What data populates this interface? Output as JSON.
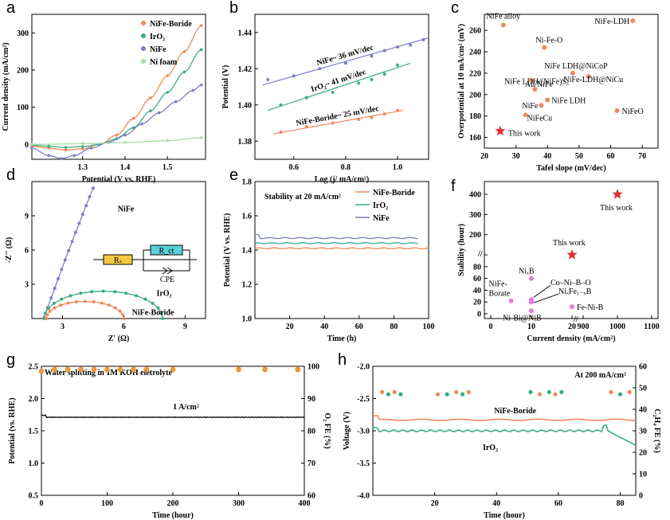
{
  "chart_data": [
    {
      "panel": "a",
      "type": "line",
      "xlabel": "Potential (V vs. RHE)",
      "ylabel": "Current density (mA/cm²)",
      "xlim": [
        1.18,
        1.59
      ],
      "ylim": [
        -40,
        350
      ],
      "xticks": [
        1.3,
        1.4,
        1.5
      ],
      "yticks": [
        0,
        100,
        200,
        300
      ],
      "legend_position": "top-right",
      "series": [
        {
          "name": "NiFe-Boride",
          "color": "#ee8a5a",
          "x": [
            1.18,
            1.22,
            1.26,
            1.3,
            1.34,
            1.38,
            1.42,
            1.46,
            1.5,
            1.54,
            1.58
          ],
          "y": [
            -5,
            -10,
            -15,
            -12,
            0,
            25,
            70,
            125,
            185,
            250,
            320
          ]
        },
        {
          "name": "IrO₂",
          "color": "#3aae7e",
          "x": [
            1.18,
            1.22,
            1.26,
            1.3,
            1.34,
            1.38,
            1.42,
            1.46,
            1.5,
            1.54,
            1.58
          ],
          "y": [
            -2,
            -5,
            -8,
            -6,
            0,
            15,
            45,
            90,
            140,
            195,
            255
          ]
        },
        {
          "name": "NiFe",
          "color": "#7b7fc4",
          "x": [
            1.18,
            1.22,
            1.25,
            1.28,
            1.32,
            1.36,
            1.4,
            1.44,
            1.48,
            1.52,
            1.56,
            1.58
          ],
          "y": [
            -10,
            -30,
            -38,
            -30,
            -10,
            5,
            25,
            55,
            85,
            115,
            145,
            160
          ]
        },
        {
          "name": "Ni foam",
          "color": "#a6dca6",
          "x": [
            1.18,
            1.3,
            1.4,
            1.5,
            1.58
          ],
          "y": [
            0,
            2,
            5,
            10,
            18
          ]
        }
      ]
    },
    {
      "panel": "b",
      "type": "scatter",
      "xlabel": "Log (j/ mA/cm²)",
      "ylabel": "Potential (V)",
      "xlim": [
        0.45,
        1.12
      ],
      "ylim": [
        1.37,
        1.45
      ],
      "xticks": [
        0.6,
        0.8,
        1.0
      ],
      "yticks": [
        1.38,
        1.4,
        1.42,
        1.44
      ],
      "series": [
        {
          "name": "NiFe~ 36 mV/dec",
          "color": "#7b7fc4",
          "fit_x": [
            0.48,
            1.12
          ],
          "fit_y": [
            1.411,
            1.437
          ],
          "x": [
            0.5,
            0.6,
            0.7,
            0.8,
            0.9,
            0.95,
            1.0,
            1.05,
            1.1
          ],
          "y": [
            1.414,
            1.416,
            1.42,
            1.423,
            1.427,
            1.43,
            1.432,
            1.433,
            1.436
          ]
        },
        {
          "name": "IrO₂~ 41 mV/dec",
          "color": "#3aae7e",
          "fit_x": [
            0.5,
            1.05
          ],
          "fit_y": [
            1.397,
            1.423
          ],
          "x": [
            0.55,
            0.65,
            0.75,
            0.85,
            0.9,
            0.95,
            1.0
          ],
          "y": [
            1.4,
            1.404,
            1.407,
            1.412,
            1.414,
            1.417,
            1.422
          ]
        },
        {
          "name": "NiFe-Boride~ 25 mV/dec",
          "color": "#ee8a5a",
          "fit_x": [
            0.52,
            1.02
          ],
          "fit_y": [
            1.384,
            1.397
          ],
          "x": [
            0.55,
            0.65,
            0.75,
            0.85,
            0.9,
            0.95,
            1.0
          ],
          "y": [
            1.385,
            1.388,
            1.39,
            1.392,
            1.393,
            1.395,
            1.397
          ]
        }
      ]
    },
    {
      "panel": "c",
      "type": "scatter",
      "xlabel": "Tafel slope (mV/dec)",
      "ylabel": "Overpotential at 10 mA/cm² (mV)",
      "xlim": [
        20,
        75
      ],
      "ylim": [
        150,
        275
      ],
      "xticks": [
        20,
        30,
        40,
        50,
        60,
        70
      ],
      "yticks": [
        160,
        180,
        200,
        220,
        240,
        260
      ],
      "points": [
        {
          "label": "NiFe alloy",
          "x": 26,
          "y": 265
        },
        {
          "label": "NiFe-LDH",
          "x": 67,
          "y": 269
        },
        {
          "label": "Ni-Fe-O",
          "x": 39,
          "y": 244
        },
        {
          "label": "NiFe LDH@NiCoP",
          "x": 48,
          "y": 220
        },
        {
          "label": "NiFe LDH/(NiFe)Sₓ",
          "x": 35,
          "y": 213
        },
        {
          "label": "NiFe-LDH@NiCu",
          "x": 53,
          "y": 217
        },
        {
          "label": "Au/NiFe",
          "x": 36,
          "y": 205
        },
        {
          "label": "NiFe",
          "x": 38,
          "y": 190
        },
        {
          "label": "NiFe LDH",
          "x": 40,
          "y": 195
        },
        {
          "label": "NiFeCu",
          "x": 33,
          "y": 181
        },
        {
          "label": "NiFeO",
          "x": 62,
          "y": 185
        }
      ],
      "highlight": {
        "label": "This work",
        "x": 25,
        "y": 166,
        "color": "#e23030"
      }
    },
    {
      "panel": "d",
      "type": "scatter",
      "xlabel": "Z' (Ω)",
      "ylabel": "-Z'' (Ω)",
      "xlim": [
        1.5,
        10
      ],
      "ylim": [
        0,
        12
      ],
      "xticks": [
        3,
        6,
        9
      ],
      "yticks": [
        3,
        6,
        9
      ],
      "series": [
        {
          "name": "NiFe",
          "color": "#7b7fc4"
        },
        {
          "name": "IrO₂",
          "color": "#3aae7e"
        },
        {
          "name": "NiFe-Boride",
          "color": "#ee8a5a"
        }
      ],
      "inset": {
        "labels": [
          "Rₛ",
          "R_ct",
          "CPE"
        ]
      }
    },
    {
      "panel": "e",
      "type": "line",
      "title": "Stability at 20 mA/cm²",
      "xlabel": "Time (h)",
      "ylabel": "Potential (V vs. RHE)",
      "xlim": [
        0,
        100
      ],
      "ylim": [
        1.0,
        1.8
      ],
      "xticks": [
        20,
        40,
        60,
        80,
        100
      ],
      "yticks": [
        1.0,
        1.2,
        1.4,
        1.6,
        1.8
      ],
      "series": [
        {
          "name": "NiFe-Boride",
          "color": "#ee8a5a",
          "value": 1.41
        },
        {
          "name": "IrO₂",
          "color": "#3aae7e",
          "value": 1.44
        },
        {
          "name": "NiFe",
          "color": "#7b7fc4",
          "value": 1.47
        }
      ]
    },
    {
      "panel": "f",
      "type": "scatter",
      "xlabel": "Current density (mA/cm²)",
      "ylabel": "Stability (hour)",
      "xticks": [
        "0",
        "10",
        "20",
        "900",
        "1000",
        "1100"
      ],
      "yticks": [
        "0",
        "20",
        "40",
        "60",
        "80",
        "100",
        "200",
        "300",
        "400"
      ],
      "points": [
        {
          "label": "This work",
          "x": 1000,
          "y": 400,
          "color": "#e23030"
        },
        {
          "label": "This work",
          "x": 20,
          "y": 100,
          "color": "#e23030"
        },
        {
          "label": "NiₓB",
          "x": 10,
          "y": 60
        },
        {
          "label": "NiFe-Borate",
          "x": 5,
          "y": 22
        },
        {
          "label": "Co–Ni–B–O",
          "x": 10,
          "y": 24
        },
        {
          "label": "NiₓFe₁₋ₓB",
          "x": 10,
          "y": 20
        },
        {
          "label": "Fe-Ni-B",
          "x": 20,
          "y": 12
        },
        {
          "label": "Ni-Bi@NiB",
          "x": 10,
          "y": 5
        }
      ]
    },
    {
      "panel": "g",
      "type": "line",
      "title": "Water splitting in 1M KOH eletrolyte",
      "annotation": "1 A/cm²",
      "xlabel": "Time (hour)",
      "ylabel": "Potential (vs. RHE)",
      "ylabel_right": "O₂ FE (%)",
      "xlim": [
        0,
        400
      ],
      "ylim": [
        0.5,
        2.5
      ],
      "ylim_right": [
        60,
        100
      ],
      "xticks": [
        0,
        100,
        200,
        300,
        400
      ],
      "yticks": [
        0.5,
        1.0,
        1.5,
        2.0,
        2.5
      ],
      "yticks_right": [
        60,
        70,
        80,
        90,
        100
      ],
      "potential_value": 1.71,
      "fe_points": {
        "x": [
          0,
          20,
          40,
          60,
          80,
          100,
          120,
          140,
          160,
          200,
          300,
          340,
          390
        ],
        "y": [
          98.5,
          99,
          99,
          99,
          99,
          99,
          99,
          99,
          99,
          99,
          99,
          99,
          99
        ]
      }
    },
    {
      "panel": "h",
      "type": "line",
      "title": "At 200 mA/cm²",
      "xlabel": "Time (hour)",
      "ylabel": "Voltage (V)",
      "ylabel_right": "C₂H₄ FE (%)",
      "xlim": [
        0,
        85
      ],
      "ylim": [
        -4.0,
        -2.0
      ],
      "ylim_right": [
        0,
        60
      ],
      "xticks": [
        20,
        40,
        60,
        80
      ],
      "yticks": [
        -4.0,
        -3.5,
        -3.0,
        -2.5,
        -2.0
      ],
      "yticks_right": [
        0,
        10,
        20,
        30,
        40,
        50,
        60
      ],
      "series": [
        {
          "name": "NiFe-Boride",
          "color": "#ee8a5a",
          "value": -2.83
        },
        {
          "name": "IrO₂",
          "color": "#3aae7e",
          "value": -3.0
        }
      ]
    }
  ]
}
